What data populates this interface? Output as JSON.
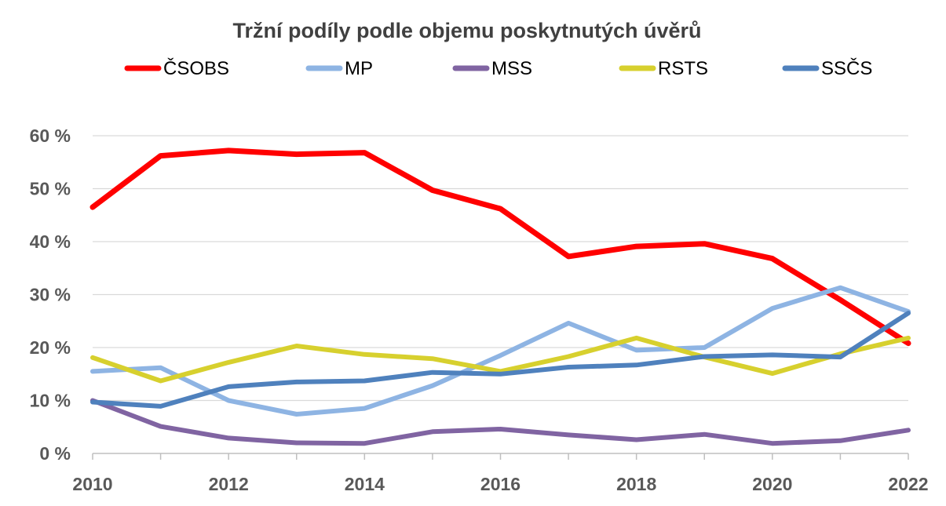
{
  "chart_data": {
    "type": "line",
    "title": "Tržní podíly podle objemu poskytnutých úvěrů",
    "xlabel": "",
    "ylabel": "",
    "x": [
      2010,
      2011,
      2012,
      2013,
      2014,
      2015,
      2016,
      2017,
      2018,
      2019,
      2020,
      2021,
      2022
    ],
    "x_tick_labels": [
      "2010",
      "2012",
      "2014",
      "2016",
      "2018",
      "2020",
      "2022"
    ],
    "y_tick_labels": [
      "0 %",
      "10 %",
      "20 %",
      "30 %",
      "40 %",
      "50 %",
      "60 %"
    ],
    "ylim": [
      0,
      60
    ],
    "y_ticks": [
      0,
      10,
      20,
      30,
      40,
      50,
      60
    ],
    "grid": true,
    "legend_position": "top",
    "series": [
      {
        "name": "ČSOBS",
        "color": "#ff0000",
        "values": [
          46.5,
          56.2,
          57.2,
          56.5,
          56.8,
          49.7,
          46.2,
          37.2,
          39.1,
          39.6,
          36.8,
          29.0,
          20.8
        ]
      },
      {
        "name": "MP",
        "color": "#8eb4e3",
        "values": [
          15.5,
          16.2,
          10.0,
          7.4,
          8.5,
          12.8,
          18.5,
          24.6,
          19.5,
          20.0,
          27.4,
          31.3,
          26.8
        ]
      },
      {
        "name": "MSS",
        "color": "#8064a2",
        "values": [
          10.0,
          5.1,
          2.9,
          2.0,
          1.9,
          4.1,
          4.6,
          3.5,
          2.6,
          3.6,
          1.9,
          2.4,
          4.4
        ]
      },
      {
        "name": "RSTS",
        "color": "#d7d02e",
        "values": [
          18.1,
          13.7,
          17.2,
          20.3,
          18.7,
          17.9,
          15.5,
          18.3,
          21.8,
          18.2,
          15.1,
          18.8,
          21.8
        ]
      },
      {
        "name": "SSČS",
        "color": "#4f81bd",
        "values": [
          9.7,
          8.9,
          12.6,
          13.5,
          13.7,
          15.3,
          15.0,
          16.3,
          16.7,
          18.3,
          18.6,
          18.2,
          26.5
        ]
      }
    ]
  }
}
